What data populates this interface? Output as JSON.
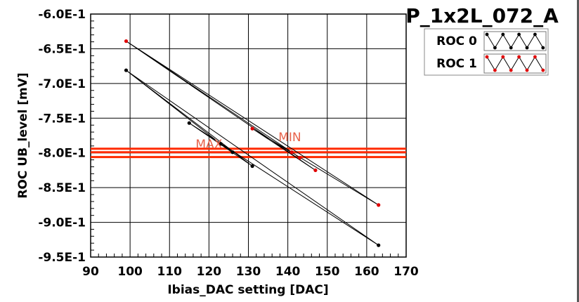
{
  "chart_data": {
    "type": "line",
    "title": "P_1x2L_072_A",
    "xlabel": "Ibias_DAC setting [DAC]",
    "ylabel": "ROC UB_level [mV]",
    "xlim": [
      90,
      170
    ],
    "ylim": [
      -0.95,
      -0.6
    ],
    "x_ticks": [
      "90",
      "100",
      "110",
      "120",
      "130",
      "140",
      "150",
      "160",
      "170"
    ],
    "y_ticks": [
      "-6.0E-1",
      "-6.5E-1",
      "-7.0E-1",
      "-7.5E-1",
      "-8.0E-1",
      "-8.5E-1",
      "-9.0E-1",
      "-9.5E-1"
    ],
    "grid": true,
    "legend_position": "top-right",
    "series": [
      {
        "name": "ROC 0",
        "color": "#000000",
        "points": [
          [
            99,
            -0.681
          ],
          [
            131,
            -0.819
          ],
          [
            115,
            -0.757
          ],
          [
            163,
            -0.933
          ],
          [
            99,
            -0.681
          ],
          [
            123,
            -0.787
          ],
          [
            126,
            -0.799
          ]
        ]
      },
      {
        "name": "ROC 1",
        "color": "#e00000",
        "points": [
          [
            99,
            -0.639
          ],
          [
            147,
            -0.825
          ],
          [
            131,
            -0.765
          ],
          [
            163,
            -0.875
          ],
          [
            99,
            -0.639
          ],
          [
            141,
            -0.799
          ],
          [
            143,
            -0.807
          ]
        ]
      }
    ],
    "reference_lines": [
      {
        "y": -0.794,
        "color": "#ff2a00"
      },
      {
        "y": -0.799,
        "color": "#ff2a00"
      },
      {
        "y": -0.806,
        "color": "#ff2a00"
      }
    ],
    "annotations": [
      {
        "text": "MAX",
        "x": 120,
        "y": -0.793,
        "color": "#e8624a"
      },
      {
        "text": "MIN",
        "x": 140.5,
        "y": -0.783,
        "color": "#e8624a"
      }
    ]
  }
}
